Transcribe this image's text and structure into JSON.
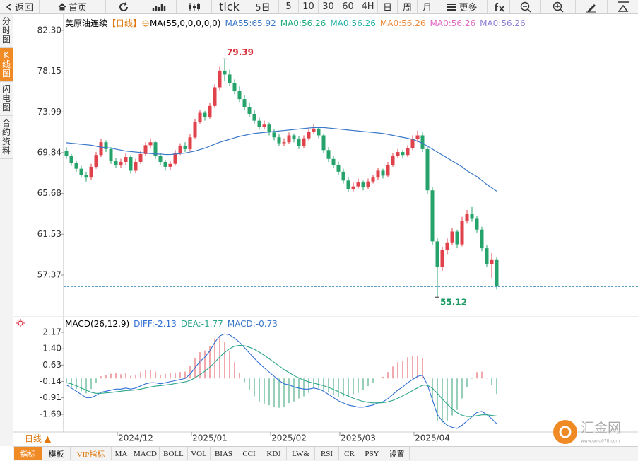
{
  "toolbar": [
    "返回",
    "首页",
    "tick",
    "5日",
    "5",
    "10",
    "30",
    "60",
    "4H",
    "日",
    "周",
    "月",
    "更多"
  ],
  "sidebar": [
    "分时图",
    "K线图",
    "闪电图",
    "合约资料"
  ],
  "period_switch": "日线 ▲",
  "tabs": [
    "指标",
    "模板",
    "VIP指标",
    "MA",
    "MACD",
    "BOLL",
    "VOL",
    "BIAS",
    "CCI",
    "KDJ",
    "LW&",
    "RSI",
    "CR",
    "PSY",
    "设置"
  ],
  "logo": {
    "name": "汇金网",
    "site": "www.gold678.com"
  },
  "chart_data": [
    {
      "type": "candlestick",
      "title": "美原油连续",
      "period": "【日线】",
      "indicator": "MA(55,0,0,0,0,0)",
      "up_color": "#e0424b",
      "down_color": "#26a36b",
      "ylim": [
        53.12,
        83.81
      ],
      "yticks": [
        {
          "value": 82.3,
          "label": "82.30"
        },
        78.15,
        73.99,
        69.84,
        65.68,
        61.53,
        57.37
      ],
      "grid": false,
      "categories": [
        null,
        null,
        null,
        null,
        null,
        null,
        null,
        null,
        null,
        null,
        null,
        null,
        null,
        null,
        "2024/12",
        null,
        null,
        null,
        null,
        null,
        null,
        null,
        null,
        null,
        null,
        null,
        null,
        null,
        null,
        "2025/01",
        null,
        null,
        null,
        null,
        null,
        null,
        null,
        null,
        null,
        null,
        null,
        null,
        null,
        null,
        null,
        "2025/02",
        null,
        null,
        null,
        null,
        null,
        null,
        null,
        null,
        null,
        null,
        null,
        null,
        null,
        "2025/03",
        null,
        null,
        null,
        null,
        null,
        null,
        null,
        null,
        null,
        null,
        null,
        null,
        null,
        null,
        "2025/04",
        null,
        null,
        null,
        null,
        null,
        null,
        null,
        null,
        null,
        null,
        null,
        null,
        null
      ],
      "candles": [
        [
          70.0,
          70.4,
          69.2,
          69.5
        ],
        [
          69.5,
          69.7,
          68.5,
          68.8
        ],
        [
          68.8,
          69.0,
          67.9,
          68.2
        ],
        [
          68.2,
          68.5,
          67.3,
          67.6
        ],
        [
          67.6,
          67.9,
          66.9,
          67.3
        ],
        [
          67.3,
          68.7,
          67.1,
          68.4
        ],
        [
          68.4,
          69.9,
          68.2,
          69.6
        ],
        [
          69.6,
          71.2,
          69.4,
          70.9
        ],
        [
          70.9,
          71.1,
          69.9,
          70.2
        ],
        [
          70.2,
          70.4,
          68.7,
          69.0
        ],
        [
          69.0,
          69.3,
          68.3,
          68.6
        ],
        [
          68.6,
          69.2,
          68.3,
          68.9
        ],
        [
          68.9,
          69.8,
          68.6,
          69.4
        ],
        [
          69.4,
          69.6,
          67.7,
          68.0
        ],
        [
          68.0,
          69.2,
          67.8,
          68.9
        ],
        [
          68.9,
          70.0,
          68.7,
          69.7
        ],
        [
          69.7,
          70.9,
          69.5,
          70.6
        ],
        [
          70.6,
          71.3,
          70.3,
          70.9
        ],
        [
          70.9,
          71.0,
          69.2,
          69.5
        ],
        [
          69.5,
          69.8,
          68.6,
          68.9
        ],
        [
          68.9,
          69.1,
          68.0,
          68.4
        ],
        [
          68.4,
          69.0,
          68.1,
          68.7
        ],
        [
          68.7,
          70.1,
          68.5,
          69.8
        ],
        [
          69.8,
          70.8,
          69.6,
          70.5
        ],
        [
          70.5,
          70.9,
          69.9,
          70.2
        ],
        [
          70.2,
          71.7,
          70.0,
          71.4
        ],
        [
          71.4,
          73.3,
          71.2,
          73.0
        ],
        [
          73.0,
          74.2,
          72.8,
          73.9
        ],
        [
          73.9,
          74.1,
          73.1,
          73.5
        ],
        [
          73.5,
          74.9,
          73.3,
          74.6
        ],
        [
          74.6,
          76.8,
          74.4,
          76.5
        ],
        [
          76.5,
          78.6,
          76.2,
          78.2
        ],
        [
          78.2,
          79.39,
          77.1,
          77.8
        ],
        [
          77.8,
          78.3,
          76.6,
          76.9
        ],
        [
          76.9,
          77.3,
          75.8,
          76.1
        ],
        [
          76.1,
          76.6,
          75.0,
          75.3
        ],
        [
          75.3,
          75.7,
          74.2,
          74.5
        ],
        [
          74.5,
          74.9,
          73.5,
          73.8
        ],
        [
          73.8,
          74.2,
          72.8,
          73.1
        ],
        [
          73.1,
          73.4,
          72.2,
          72.5
        ],
        [
          72.5,
          73.1,
          72.2,
          72.7
        ],
        [
          72.7,
          72.9,
          71.6,
          71.9
        ],
        [
          71.9,
          72.2,
          71.1,
          71.4
        ],
        [
          71.4,
          71.7,
          70.5,
          70.8
        ],
        [
          70.8,
          71.3,
          70.5,
          70.9
        ],
        [
          70.9,
          71.9,
          70.7,
          71.6
        ],
        [
          71.6,
          71.8,
          70.9,
          71.2
        ],
        [
          71.2,
          71.5,
          70.2,
          70.5
        ],
        [
          70.5,
          71.6,
          70.3,
          71.3
        ],
        [
          71.3,
          72.3,
          71.1,
          72.0
        ],
        [
          72.0,
          72.7,
          71.8,
          72.3
        ],
        [
          72.3,
          72.5,
          71.3,
          71.6
        ],
        [
          71.6,
          71.8,
          69.8,
          70.1
        ],
        [
          70.1,
          70.4,
          68.9,
          69.2
        ],
        [
          69.2,
          69.5,
          68.3,
          68.6
        ],
        [
          68.6,
          68.9,
          67.6,
          67.9
        ],
        [
          67.9,
          68.2,
          66.7,
          67.0
        ],
        [
          67.0,
          67.3,
          65.8,
          66.1
        ],
        [
          66.1,
          66.8,
          65.9,
          66.4
        ],
        [
          66.4,
          67.2,
          66.2,
          66.8
        ],
        [
          66.8,
          67.0,
          66.0,
          66.3
        ],
        [
          66.3,
          67.2,
          66.1,
          66.9
        ],
        [
          66.9,
          67.6,
          66.7,
          67.3
        ],
        [
          67.3,
          68.3,
          67.1,
          68.0
        ],
        [
          68.0,
          68.2,
          67.2,
          67.5
        ],
        [
          67.5,
          68.9,
          67.3,
          68.6
        ],
        [
          68.6,
          69.8,
          68.4,
          69.5
        ],
        [
          69.5,
          70.2,
          69.3,
          69.9
        ],
        [
          69.9,
          70.1,
          69.3,
          69.6
        ],
        [
          69.6,
          70.6,
          69.4,
          70.3
        ],
        [
          70.3,
          71.6,
          70.1,
          71.2
        ],
        [
          71.2,
          72.1,
          70.9,
          71.6
        ],
        [
          71.6,
          71.9,
          69.9,
          70.2
        ],
        [
          70.2,
          70.4,
          65.6,
          66.0
        ],
        [
          66.0,
          66.3,
          60.4,
          60.8
        ],
        [
          60.8,
          61.2,
          55.12,
          58.2
        ],
        [
          58.2,
          60.2,
          57.8,
          59.9
        ],
        [
          59.9,
          61.1,
          59.5,
          60.7
        ],
        [
          60.7,
          62.2,
          60.4,
          61.8
        ],
        [
          61.8,
          62.0,
          60.1,
          60.5
        ],
        [
          60.5,
          63.3,
          60.3,
          62.9
        ],
        [
          62.9,
          64.0,
          62.6,
          63.6
        ],
        [
          63.6,
          64.3,
          62.8,
          63.1
        ],
        [
          63.1,
          63.4,
          61.7,
          62.0
        ],
        [
          62.0,
          62.3,
          59.8,
          60.1
        ],
        [
          60.1,
          60.4,
          58.2,
          58.5
        ],
        [
          58.5,
          59.6,
          57.1,
          58.9
        ],
        [
          58.9,
          59.2,
          55.9,
          56.2
        ]
      ],
      "series": [
        {
          "name": "MA55:65.92",
          "color": "#3a78c8",
          "values": [
            70.85,
            70.8,
            70.75,
            70.7,
            70.65,
            70.6,
            70.5,
            70.4,
            70.35,
            70.3,
            70.2,
            70.1,
            70.0,
            69.95,
            69.9,
            69.85,
            69.8,
            69.75,
            69.7,
            69.7,
            69.65,
            69.65,
            69.7,
            69.75,
            69.8,
            69.9,
            70.0,
            70.15,
            70.3,
            70.5,
            70.7,
            70.9,
            71.05,
            71.2,
            71.35,
            71.5,
            71.6,
            71.7,
            71.8,
            71.85,
            71.9,
            71.95,
            72.0,
            72.05,
            72.1,
            72.15,
            72.2,
            72.25,
            72.3,
            72.35,
            72.4,
            72.4,
            72.4,
            72.35,
            72.3,
            72.25,
            72.2,
            72.15,
            72.1,
            72.05,
            72.0,
            71.95,
            71.9,
            71.85,
            71.8,
            71.7,
            71.6,
            71.5,
            71.4,
            71.3,
            71.2,
            71.0,
            70.8,
            70.5,
            70.2,
            69.9,
            69.6,
            69.3,
            69.0,
            68.7,
            68.4,
            68.0,
            67.7,
            67.4,
            67.0,
            66.6,
            66.25,
            65.92
          ]
        }
      ],
      "legend_extra": [
        {
          "text": "MA0:56.26",
          "color": "#1fae7a"
        },
        {
          "text": "MA0:56.26",
          "color": "#22b0a8"
        },
        {
          "text": "MA0:56.26",
          "color": "#ee8a3c"
        },
        {
          "text": "MA0:56.26",
          "color": "#e065c4"
        },
        {
          "text": "MA0:56.26",
          "color": "#8c7fd6"
        }
      ]
    },
    {
      "type": "macd",
      "indicator": "MACD(26,12,9)",
      "ylim": [
        -2.32,
        2.77
      ],
      "yticks": [
        2.17,
        {
          "value": 1.4,
          "label": "1.40"
        },
        0.63,
        -0.14,
        -0.91,
        -1.69
      ],
      "series": [
        {
          "name": "DIFF:-2.13",
          "color": "#2f6fd6",
          "values": [
            -0.3,
            -0.45,
            -0.6,
            -0.75,
            -0.9,
            -0.9,
            -0.8,
            -0.65,
            -0.6,
            -0.55,
            -0.5,
            -0.5,
            -0.45,
            -0.5,
            -0.45,
            -0.35,
            -0.25,
            -0.2,
            -0.2,
            -0.25,
            -0.2,
            -0.15,
            -0.1,
            -0.05,
            0.0,
            0.2,
            0.5,
            0.8,
            1.0,
            1.3,
            1.7,
            2.0,
            2.1,
            2.05,
            1.9,
            1.7,
            1.45,
            1.2,
            0.95,
            0.7,
            0.5,
            0.3,
            0.1,
            -0.1,
            -0.25,
            -0.3,
            -0.4,
            -0.45,
            -0.5,
            -0.5,
            -0.45,
            -0.5,
            -0.6,
            -0.75,
            -0.9,
            -1.05,
            -1.15,
            -1.25,
            -1.3,
            -1.35,
            -1.35,
            -1.3,
            -1.25,
            -1.15,
            -1.1,
            -0.95,
            -0.75,
            -0.55,
            -0.4,
            -0.2,
            -0.05,
            0.1,
            0.15,
            -0.3,
            -1.0,
            -1.7,
            -2.0,
            -2.2,
            -2.3,
            -2.35,
            -2.2,
            -2.0,
            -1.8,
            -1.6,
            -1.55,
            -1.7,
            -1.9,
            -2.13
          ]
        },
        {
          "name": "DEA:-1.77",
          "color": "#2ca68a",
          "values": [
            -0.2,
            -0.25,
            -0.35,
            -0.45,
            -0.55,
            -0.65,
            -0.7,
            -0.7,
            -0.68,
            -0.66,
            -0.63,
            -0.6,
            -0.57,
            -0.56,
            -0.54,
            -0.5,
            -0.45,
            -0.4,
            -0.36,
            -0.34,
            -0.31,
            -0.28,
            -0.24,
            -0.2,
            -0.16,
            -0.09,
            0.03,
            0.18,
            0.34,
            0.53,
            0.76,
            1.01,
            1.23,
            1.4,
            1.52,
            1.56,
            1.54,
            1.47,
            1.37,
            1.24,
            1.09,
            0.93,
            0.76,
            0.59,
            0.42,
            0.28,
            0.14,
            0.02,
            -0.08,
            -0.16,
            -0.22,
            -0.28,
            -0.34,
            -0.42,
            -0.52,
            -0.62,
            -0.73,
            -0.83,
            -0.93,
            -1.01,
            -1.08,
            -1.12,
            -1.15,
            -1.15,
            -1.14,
            -1.1,
            -1.03,
            -0.93,
            -0.82,
            -0.7,
            -0.57,
            -0.44,
            -0.32,
            -0.32,
            -0.46,
            -0.7,
            -0.96,
            -1.21,
            -1.43,
            -1.61,
            -1.73,
            -1.79,
            -1.79,
            -1.75,
            -1.71,
            -1.71,
            -1.74,
            -1.77
          ]
        }
      ],
      "histogram": {
        "name": "MACD:-0.73",
        "label_color": "#3a78c8",
        "color_up": "#e0505a",
        "color_down": "#2ca070",
        "values": [
          -0.2,
          -0.4,
          -0.5,
          -0.6,
          -0.7,
          -0.5,
          -0.2,
          0.1,
          0.16,
          0.22,
          0.26,
          0.2,
          0.24,
          0.12,
          0.18,
          0.3,
          0.4,
          0.4,
          0.32,
          0.18,
          0.22,
          0.26,
          0.28,
          0.3,
          0.32,
          0.58,
          0.94,
          1.24,
          1.32,
          1.54,
          1.88,
          1.98,
          1.74,
          1.3,
          0.76,
          0.28,
          -0.18,
          -0.54,
          -0.84,
          -1.08,
          -1.18,
          -1.26,
          -1.32,
          -1.38,
          -1.34,
          -1.16,
          -1.08,
          -0.94,
          -0.84,
          -0.68,
          -0.46,
          -0.44,
          -0.52,
          -0.66,
          -0.76,
          -0.86,
          -0.84,
          -0.84,
          -0.74,
          -0.68,
          -0.54,
          -0.36,
          -0.2,
          0.0,
          0.08,
          0.3,
          0.56,
          0.76,
          0.84,
          1.0,
          1.04,
          1.08,
          0.94,
          0.04,
          -1.08,
          -2.0,
          -2.08,
          -1.98,
          -1.74,
          -1.48,
          -0.94,
          -0.42,
          -0.02,
          0.3,
          0.32,
          0.02,
          -0.32,
          -0.73
        ]
      }
    }
  ]
}
